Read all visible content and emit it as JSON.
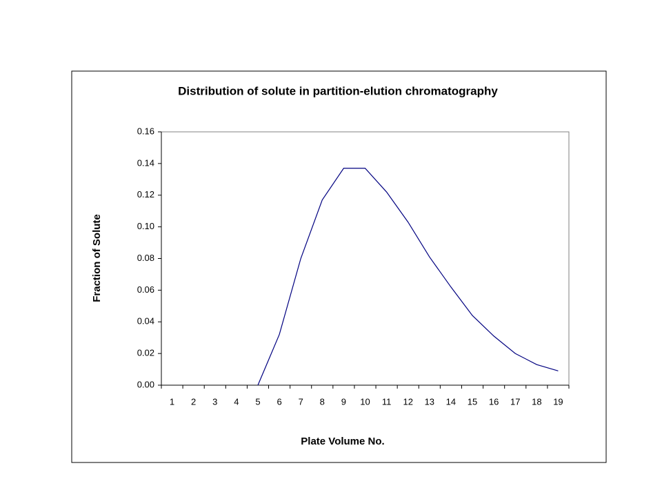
{
  "chart_data": {
    "type": "line",
    "title": "Distribution of solute in partition-elution chromatography",
    "x_label": "Plate Volume No.",
    "y_label": "Fraction of Solute",
    "categories": [
      "1",
      "2",
      "3",
      "4",
      "5",
      "6",
      "7",
      "8",
      "9",
      "10",
      "11",
      "12",
      "13",
      "14",
      "15",
      "16",
      "17",
      "18",
      "19"
    ],
    "values": [
      null,
      null,
      null,
      null,
      0.0,
      0.032,
      0.08,
      0.117,
      0.137,
      0.137,
      0.122,
      0.103,
      0.081,
      0.062,
      0.044,
      0.031,
      0.02,
      0.013,
      0.009
    ],
    "color": "#000080",
    "ylim": [
      0,
      0.16
    ],
    "yticks": [
      {
        "value": 0,
        "label": "0.00"
      },
      {
        "value": 0.02,
        "label": "0.02"
      },
      {
        "value": 0.04,
        "label": "0.04"
      },
      {
        "value": 0.06,
        "label": "0.06"
      },
      {
        "value": 0.08,
        "label": "0.08"
      },
      {
        "value": 0.1,
        "label": "0.10"
      },
      {
        "value": 0.12,
        "label": "0.12"
      },
      {
        "value": 0.14,
        "label": "0.14"
      },
      {
        "value": 0.16,
        "label": "0.16"
      }
    ],
    "grid": false
  }
}
